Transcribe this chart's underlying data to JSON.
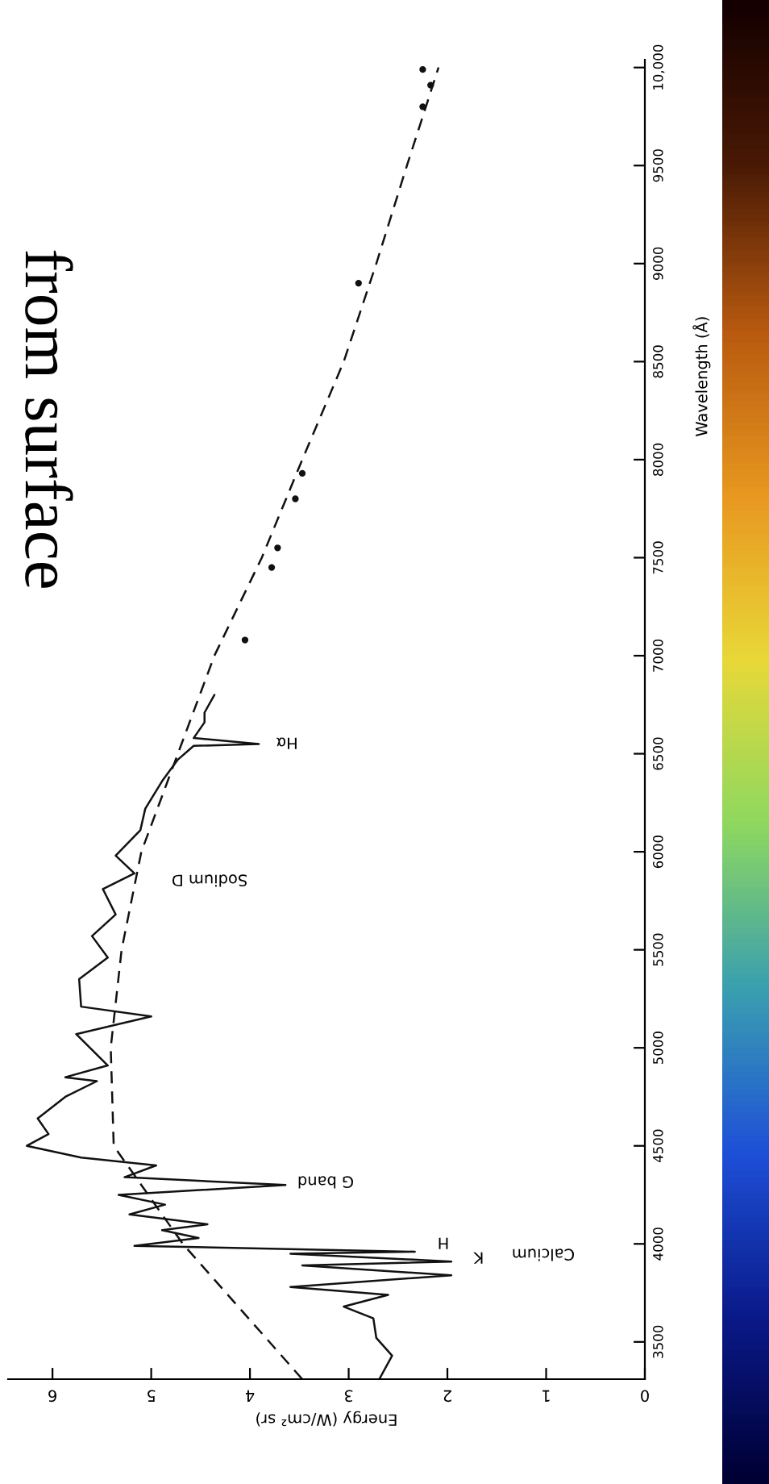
{
  "chart_data": {
    "type": "line",
    "xlabel": "Energy (W/cm² sr)",
    "ylabel": "Wavelength (Å)",
    "xlim": [
      6.45,
      0
    ],
    "xticks": [
      0,
      1,
      2,
      3,
      4,
      5,
      6
    ],
    "ylim": [
      3310,
      10040
    ],
    "yticks": [
      3500,
      4000,
      4500,
      5000,
      5500,
      6000,
      6500,
      7000,
      7500,
      8000,
      8500,
      9000,
      9500,
      {
        "value": 10000,
        "label": "10,000"
      }
    ],
    "grid": false,
    "series": [
      {
        "type": "line",
        "color": "#111111",
        "line_style": "solid",
        "marker": "none",
        "x": [
          2.69,
          2.56,
          2.72,
          2.75,
          3.05,
          2.6,
          3.59,
          1.96,
          3.47,
          1.96,
          3.59,
          2.33,
          5.17,
          4.52,
          4.89,
          4.43,
          5.22,
          4.86,
          5.33,
          3.64,
          5.27,
          4.95,
          5.71,
          6.26,
          6.04,
          6.15,
          5.87,
          5.55,
          5.87,
          5.44,
          5.76,
          5.0,
          5.71,
          5.73,
          5.44,
          5.6,
          5.36,
          5.49,
          5.17,
          5.36,
          5.11,
          5.06,
          4.89,
          4.73,
          4.57,
          3.91,
          4.57,
          4.46,
          4.46,
          4.36
        ],
        "values": [
          3310,
          3430,
          3520,
          3620,
          3680,
          3740,
          3780,
          3840,
          3890,
          3910,
          3950,
          3960,
          3990,
          4030,
          4070,
          4100,
          4150,
          4200,
          4250,
          4300,
          4340,
          4400,
          4440,
          4500,
          4560,
          4640,
          4750,
          4830,
          4850,
          4910,
          5070,
          5160,
          5210,
          5350,
          5460,
          5570,
          5680,
          5810,
          5890,
          5980,
          6110,
          6220,
          6360,
          6470,
          6540,
          6550,
          6580,
          6660,
          6710,
          6800
        ]
      },
      {
        "type": "line",
        "color": "#111111",
        "line_style": "dashed",
        "marker": "none",
        "x": [
          3.47,
          4.68,
          5.38,
          5.41,
          5.3,
          5.1,
          4.73,
          4.36,
          3.88,
          3.47,
          3.05,
          2.72,
          2.41,
          2.09
        ],
        "values": [
          3310,
          4000,
          4500,
          5000,
          5500,
          6000,
          6500,
          7000,
          7500,
          8000,
          8500,
          9000,
          9500,
          10000
        ]
      },
      {
        "type": "scatter",
        "color": "#111111",
        "marker": "circle",
        "x": [
          4.05,
          3.78,
          3.72,
          3.54,
          3.47,
          2.9,
          2.25,
          2.17,
          2.25
        ],
        "values": [
          7080,
          7450,
          7550,
          7800,
          7930,
          8900,
          9800,
          9910,
          9990
        ]
      }
    ],
    "annotations": [
      "from surface",
      "Calcium",
      "H",
      "K",
      "G band",
      "Sodium D",
      "Hα"
    ]
  }
}
